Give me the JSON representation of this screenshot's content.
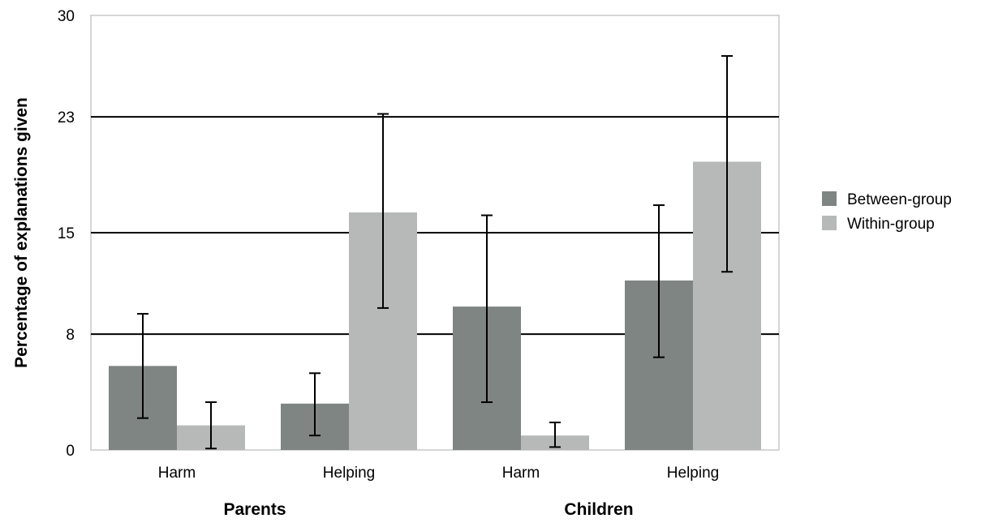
{
  "chart_data": {
    "type": "bar",
    "title": "",
    "xlabel": "",
    "ylabel": "Percentage of explanations given",
    "ylim": [
      0,
      30
    ],
    "yticks": [
      0,
      8,
      15,
      23,
      30
    ],
    "grid": "horizontal",
    "legend_position": "right",
    "groups": [
      {
        "label": "Parents",
        "categories": [
          "Harm",
          "Helping"
        ]
      },
      {
        "label": "Children",
        "categories": [
          "Harm",
          "Helping"
        ]
      }
    ],
    "categories": [
      "Harm",
      "Helping",
      "Harm",
      "Helping"
    ],
    "series": [
      {
        "name": "Between-group",
        "color": "#7f8583",
        "values": [
          5.8,
          3.2,
          9.9,
          11.7
        ],
        "error_low": [
          2.2,
          1.0,
          3.3,
          6.4
        ],
        "error_high": [
          9.4,
          5.3,
          16.2,
          16.9
        ]
      },
      {
        "name": "Within-group",
        "color": "#b7b9b8",
        "values": [
          1.7,
          16.4,
          1.0,
          19.9
        ],
        "error_low": [
          0.1,
          9.8,
          0.2,
          12.3
        ],
        "error_high": [
          3.3,
          23.2,
          1.9,
          27.2
        ]
      }
    ]
  }
}
